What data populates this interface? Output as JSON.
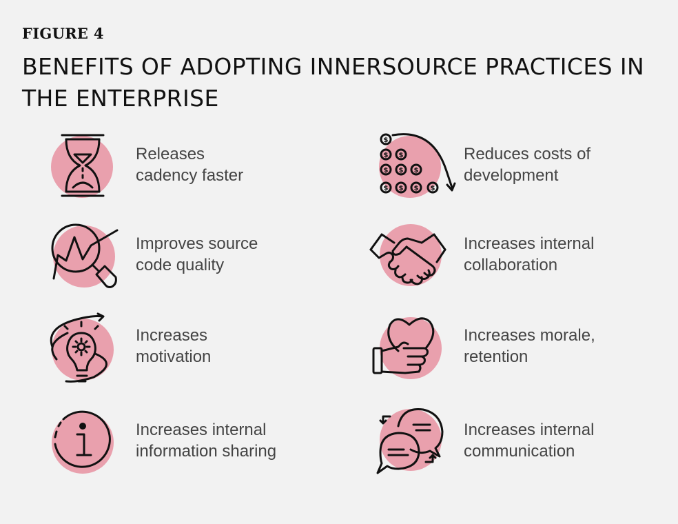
{
  "figure": {
    "label": "FIGURE 4",
    "title": "BENEFITS OF ADOPTING INNERSOURCE PRACTICES IN THE ENTERPRISE"
  },
  "accent_color": "#e9a0ad",
  "benefits": [
    {
      "icon": "hourglass-icon",
      "line1": "Releases",
      "line2": "cadency faster"
    },
    {
      "icon": "coins-icon",
      "line1": "Reduces costs of",
      "line2": "development"
    },
    {
      "icon": "magnifier-chart-icon",
      "line1": "Improves source",
      "line2": "code quality"
    },
    {
      "icon": "handshake-icon",
      "line1": "Increases internal",
      "line2": "collaboration"
    },
    {
      "icon": "lightbulb-gear-icon",
      "line1": "Increases",
      "line2": "motivation"
    },
    {
      "icon": "heart-hand-icon",
      "line1": "Increases morale,",
      "line2": "retention"
    },
    {
      "icon": "info-icon",
      "line1": "Increases internal",
      "line2": "information sharing"
    },
    {
      "icon": "chat-bubbles-icon",
      "line1": "Increases internal",
      "line2": "communication"
    }
  ]
}
